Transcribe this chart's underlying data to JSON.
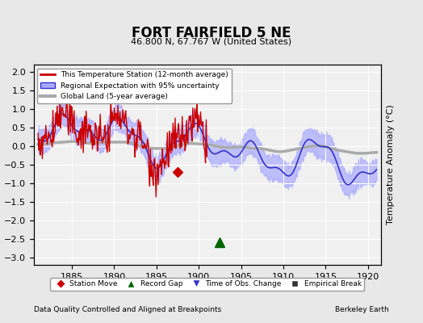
{
  "title": "FORT FAIRFIELD 5 NE",
  "subtitle": "46.800 N, 67.767 W (United States)",
  "xlabel_bottom": "Data Quality Controlled and Aligned at Breakpoints",
  "xlabel_right": "Berkeley Earth",
  "ylabel_right": "Temperature Anomaly (°C)",
  "xlim": [
    1880.5,
    1921.5
  ],
  "ylim": [
    -3.2,
    2.2
  ],
  "yticks": [
    -3,
    -2.5,
    -2,
    -1.5,
    -1,
    -0.5,
    0,
    0.5,
    1,
    1.5,
    2
  ],
  "xticks": [
    1885,
    1890,
    1895,
    1900,
    1905,
    1910,
    1915,
    1920
  ],
  "bg_color": "#e8e8e8",
  "plot_bg_color": "#f0f0f0",
  "grid_color": "#ffffff",
  "regional_line_color": "#3333cc",
  "regional_fill_color": "#aaaaff",
  "station_line_color": "#cc0000",
  "global_line_color": "#aaaaaa",
  "station_move_color": "#cc0000",
  "record_gap_color": "#006600",
  "time_obs_color": "#0000cc",
  "empirical_break_color": "#333333",
  "legend_items": [
    "This Temperature Station (12-month average)",
    "Regional Expectation with 95% uncertainty",
    "Global Land (5-year average)"
  ],
  "marker_legend": [
    {
      "label": "Station Move",
      "marker": "D",
      "color": "#cc0000"
    },
    {
      "label": "Record Gap",
      "marker": "^",
      "color": "#006600"
    },
    {
      "label": "Time of Obs. Change",
      "marker": "v",
      "color": "#3333cc"
    },
    {
      "label": "Empirical Break",
      "marker": "s",
      "color": "#333333"
    }
  ],
  "record_gap_x": 1902.5,
  "record_gap_y": -2.6,
  "station_move_x": 1897.5,
  "station_move_y": -0.7
}
